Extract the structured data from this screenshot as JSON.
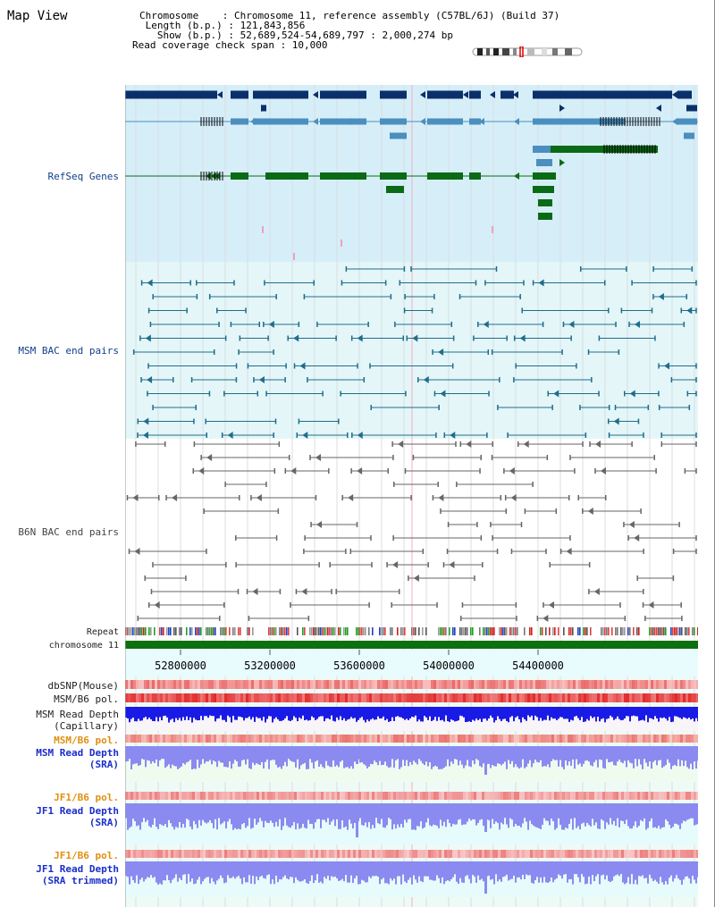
{
  "view_title": "Map View",
  "info": {
    "chromosome": "Chromosome    : Chromosome 11, reference assembly (C57BL/6J) (Build 37)",
    "length": " Length (b.p.) : 121,843,856",
    "show": "   Show (b.p.) : 52,689,524-54,689,797 : 2,000,274 bp",
    "span": "Read coverage check span : 10,000"
  },
  "tracks": {
    "refseq": "RefSeq Genes",
    "msm_bac": "MSM BAC end pairs",
    "b6n_bac": "B6N BAC end pairs",
    "repeat": "Repeat",
    "chromosome": "chromosome 11",
    "dbsnp": "dbSNP(Mouse)",
    "msm_b6_pol_1": "MSM/B6 pol.",
    "msm_depth_cap_1": "MSM Read Depth",
    "msm_depth_cap_2": "(Capillary)",
    "msm_b6_pol_2": "MSM/B6 pol.",
    "msm_depth_sra_1": "MSM Read Depth",
    "msm_depth_sra_2": "(SRA)",
    "jf1_b6_pol_1": "JF1/B6 pol.",
    "jf1_depth_sra_1": "JF1 Read Depth",
    "jf1_depth_sra_2": "(SRA)",
    "jf1_b6_pol_2": "JF1/B6 pol.",
    "jf1_depth_trim_1": "JF1 Read Depth",
    "jf1_depth_trim_2": "(SRA trimmed)"
  },
  "axis_ticks": [
    "52800000",
    "53200000",
    "53600000",
    "54000000",
    "54400000"
  ],
  "colors": {
    "refseq_bg": "#d6eef8",
    "bac_bg": "#e4f6f8",
    "gene_navy": "#0b2f6b",
    "gene_steel": "#4a8fbe",
    "gene_green": "#0a6a16",
    "msm_bac": "#1f6d8c",
    "b6n_bac": "#666666",
    "chromosome_bar": "#0a7010",
    "polymorphism": "#f05050",
    "read_depth_cap": "#1a1ae6",
    "read_depth_sra": "#8a8af0"
  }
}
